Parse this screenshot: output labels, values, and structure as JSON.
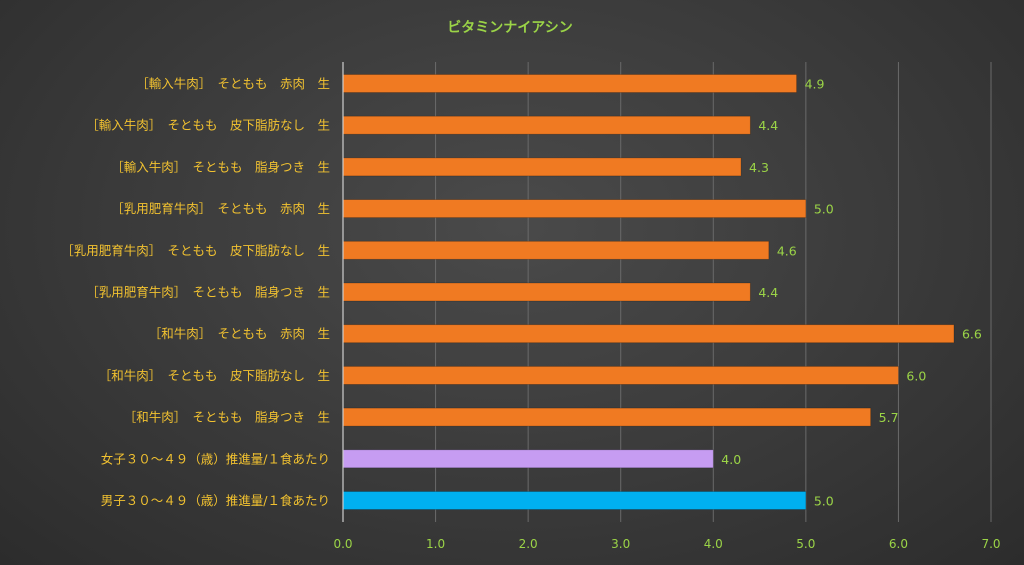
{
  "chart_data": {
    "type": "bar",
    "orientation": "horizontal",
    "title": "ビタミンナイアシン",
    "categories": [
      "［輸入牛肉］　そともも　赤肉　生",
      "［輸入牛肉］　そともも　皮下脂肪なし　生",
      "［輸入牛肉］　そともも　脂身つき　生",
      "［乳用肥育牛肉］　そともも　赤肉　生",
      "［乳用肥育牛肉］　そともも　皮下脂肪なし　生",
      "［乳用肥育牛肉］　そともも　脂身つき　生",
      "［和牛肉］　そともも　赤肉　生",
      "［和牛肉］　そともも　皮下脂肪なし　生",
      "［和牛肉］　そともも　脂身つき　生",
      "女子３０～４９（歳）推進量/１食あたり",
      "男子３０～４９（歳）推進量/１食あたり"
    ],
    "values": [
      4.9,
      4.4,
      4.3,
      5.0,
      4.6,
      4.4,
      6.6,
      6.0,
      5.7,
      4.0,
      5.0
    ],
    "value_labels": [
      "4.9",
      "4.4",
      "4.3",
      "5.0",
      "4.6",
      "4.4",
      "6.6",
      "6.0",
      "5.7",
      "4.0",
      "5.0"
    ],
    "bar_colors": [
      "#f07a22",
      "#f07a22",
      "#f07a22",
      "#f07a22",
      "#f07a22",
      "#f07a22",
      "#f07a22",
      "#f07a22",
      "#f07a22",
      "#c69cf2",
      "#00b0f0"
    ],
    "xlim": [
      0,
      7
    ],
    "xticks": [
      "0.0",
      "1.0",
      "2.0",
      "3.0",
      "4.0",
      "5.0",
      "6.0",
      "7.0"
    ],
    "grid": true,
    "legend": "none"
  }
}
